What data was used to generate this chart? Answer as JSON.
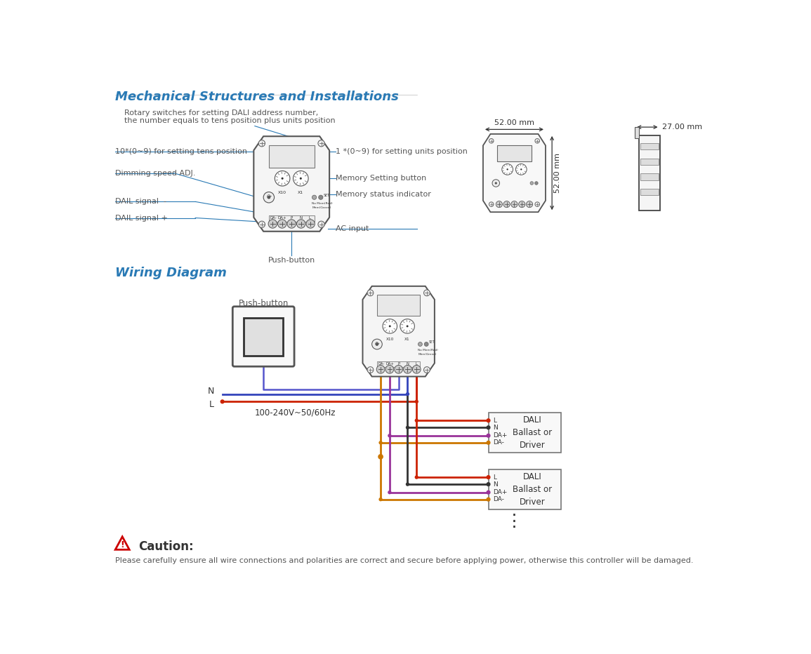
{
  "title_section1": "Mechanical Structures and Installations",
  "title_section2": "Wiring Diagram",
  "title_color": "#2a7ab5",
  "bg_color": "#ffffff",
  "line_color": "#2a7ab5",
  "dark_color": "#333333",
  "label_color": "#555555",
  "caution_color": "#cc0000",
  "caution_title": "Caution:",
  "caution_text": "Please carefully ensure all wire connections and polarities are correct and secure before applying power, otherwise this controller will be damaged.",
  "rotary_label1": "Rotary switches for setting DALI address number,",
  "rotary_label2": "the number equals to tens position plus units position",
  "label_tens": "10*(0~9) for setting tens position",
  "label_units": "1 *(0~9) for setting units position",
  "label_dimming": "Dimming speed ADJ.",
  "label_memory_btn": "Memory Setting button",
  "label_memory_ind": "Memory status indicator",
  "label_dali_minus": "DAIL signal  -",
  "label_dali_plus": "DAIL signal +",
  "label_ac_input": "AC input",
  "label_push_button": "Push-button",
  "dim_52mm": "52.00 mm",
  "dim_52mm_v": "52.00 mm",
  "dim_27mm": "27.00 mm",
  "wiring_pushbutton": "Push-button",
  "wiring_freq": "100-240V~50/60Hz",
  "wiring_dali1": "DALI\nBallast or\nDriver",
  "wiring_dali2": "DALI\nBallast or\nDriver"
}
